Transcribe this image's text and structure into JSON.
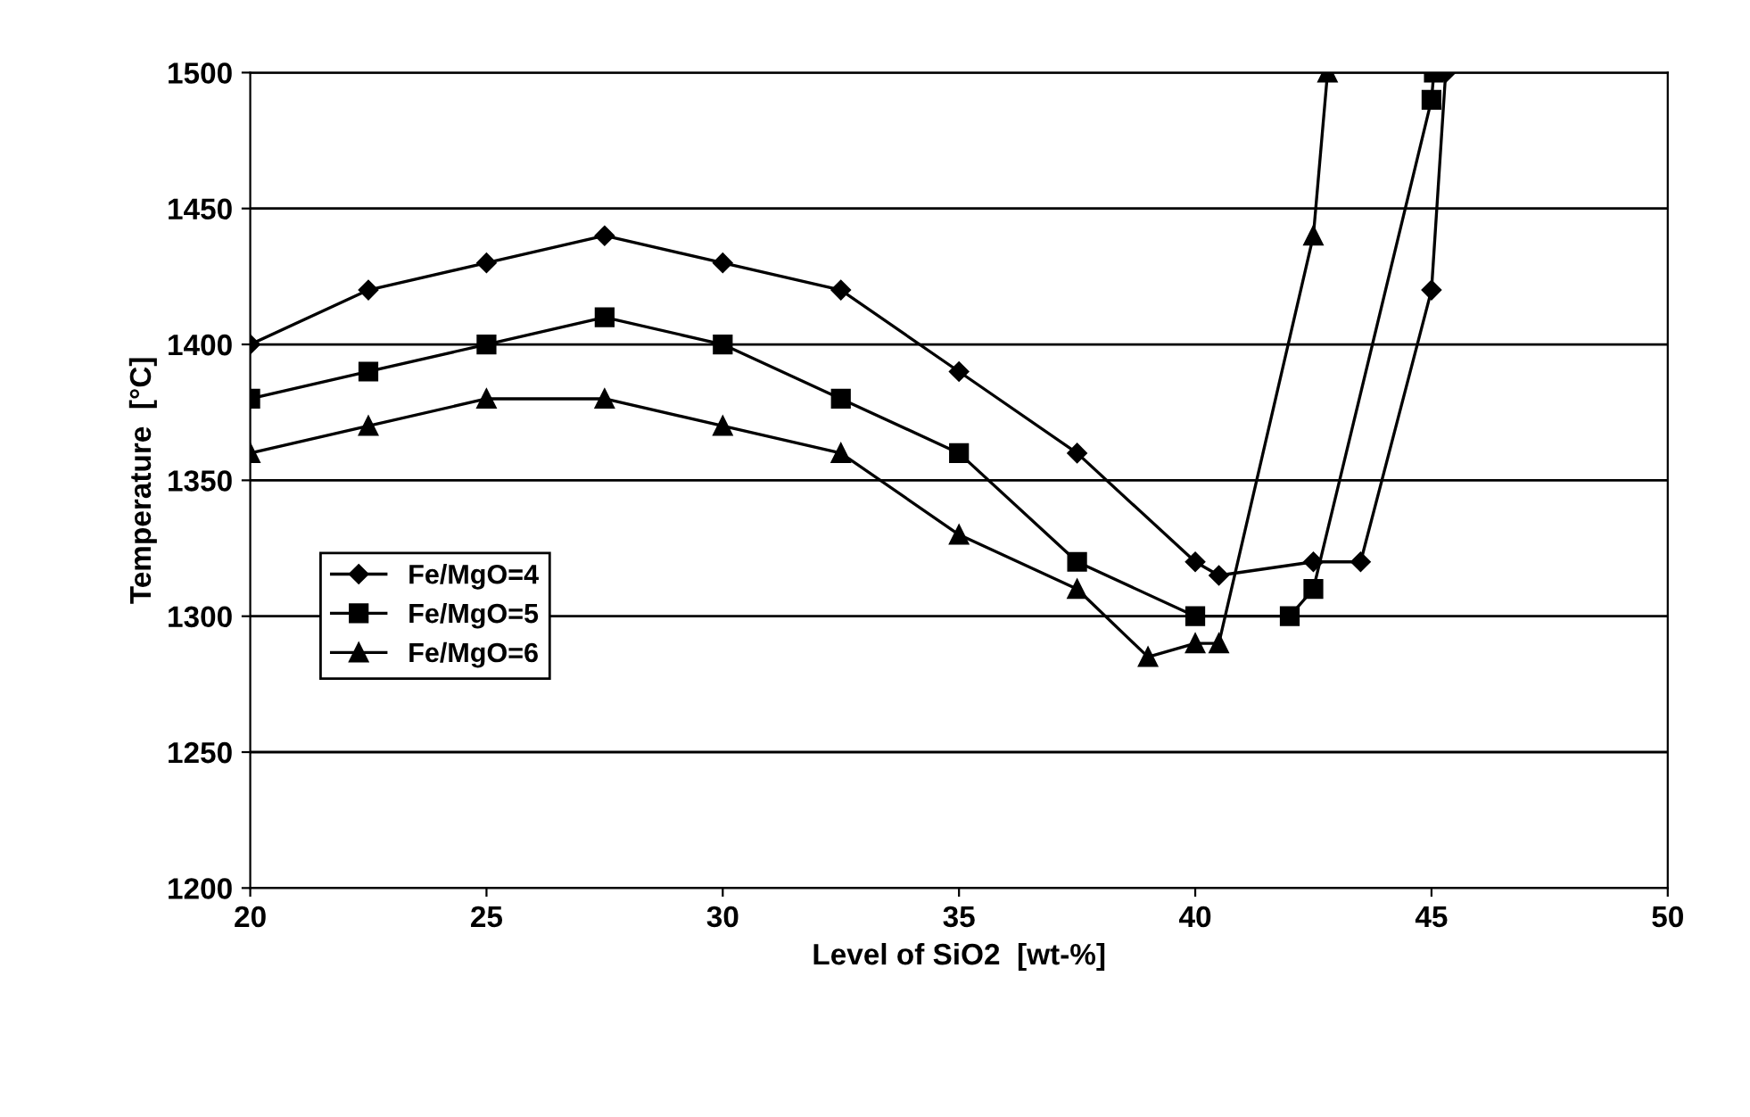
{
  "chart_data": {
    "type": "line",
    "xlabel": "Level of SiO2  [wt-%]",
    "ylabel": "Temperature  [°C]",
    "xlim": [
      20,
      50
    ],
    "xticks": [
      20,
      25,
      30,
      35,
      40,
      45,
      50
    ],
    "ylim": [
      1200,
      1500
    ],
    "yticks": [
      1200,
      1250,
      1300,
      1350,
      1400,
      1450,
      1500
    ],
    "grid": "y",
    "legend": "bottom left",
    "line_style": "solid",
    "series": [
      {
        "name": "Fe/MgO=4",
        "color": "#000000",
        "marker": "diamond",
        "x": [
          20,
          22.5,
          25,
          27.5,
          30,
          32.5,
          35,
          37.5,
          40,
          40.5,
          42.5,
          43.5,
          45,
          45.3
        ],
        "values": [
          1400,
          1420,
          1430,
          1440,
          1430,
          1420,
          1390,
          1360,
          1320,
          1315,
          1320,
          1320,
          1420,
          1500
        ]
      },
      {
        "name": "Fe/MgO=5",
        "color": "#000000",
        "marker": "square",
        "x": [
          20,
          22.5,
          25,
          27.5,
          30,
          32.5,
          35,
          37.5,
          40,
          42,
          42.5,
          45,
          45.05
        ],
        "values": [
          1380,
          1390,
          1400,
          1410,
          1400,
          1380,
          1360,
          1320,
          1300,
          1300,
          1310,
          1490,
          1500
        ]
      },
      {
        "name": "Fe/MgO=6",
        "color": "#000000",
        "marker": "triangle",
        "x": [
          20,
          22.5,
          25,
          27.5,
          30,
          32.5,
          35,
          37.5,
          39,
          40,
          40.5,
          42.5,
          42.8
        ],
        "values": [
          1360,
          1370,
          1380,
          1380,
          1370,
          1360,
          1330,
          1310,
          1285,
          1290,
          1290,
          1440,
          1500
        ]
      }
    ]
  }
}
